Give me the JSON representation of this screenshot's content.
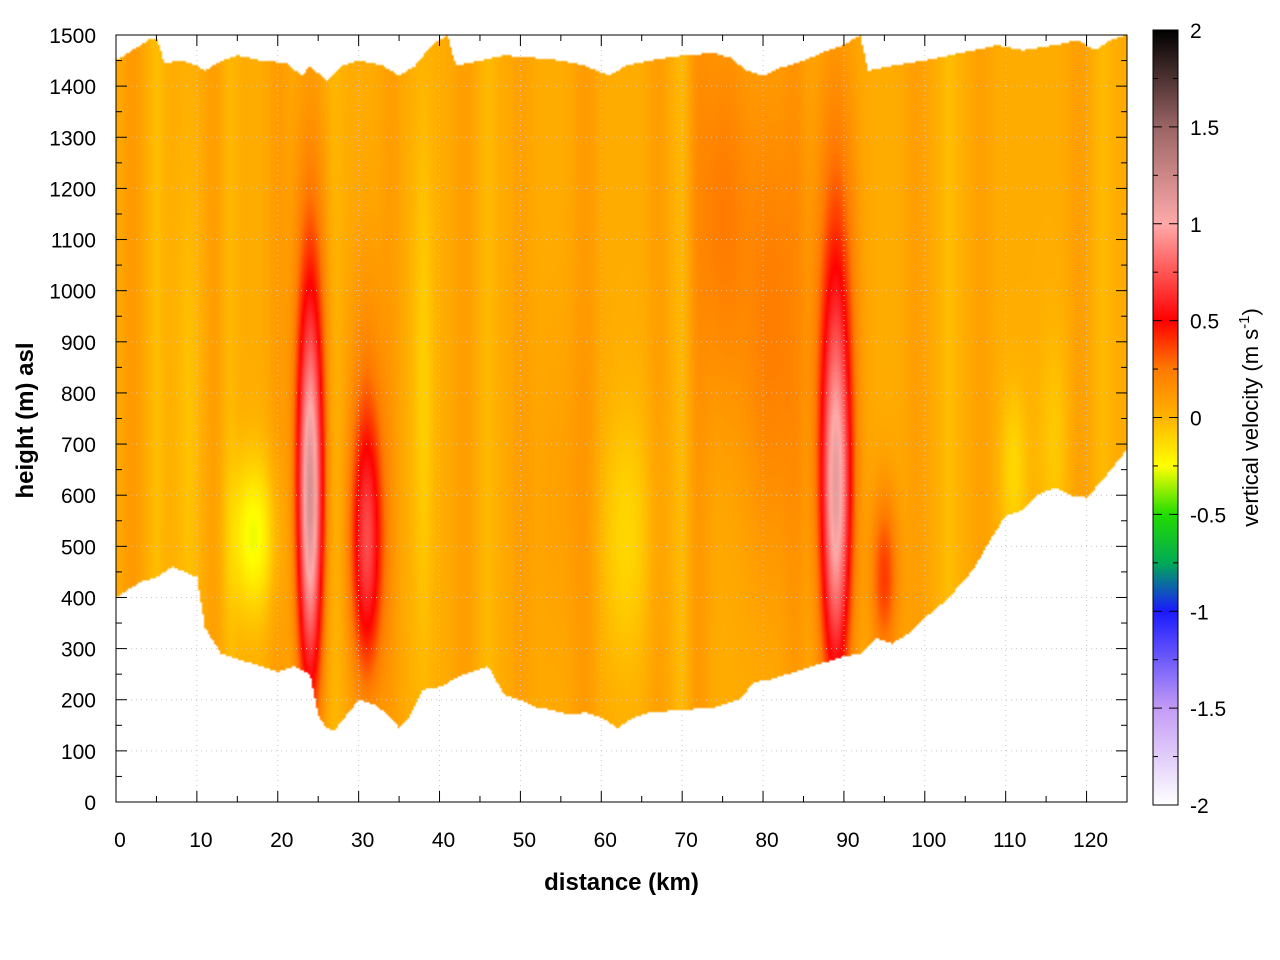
{
  "chart_data": {
    "type": "heatmap",
    "title": "",
    "xlabel": "distance (km)",
    "ylabel": "height (m) asl",
    "xlim": [
      0,
      125
    ],
    "ylim": [
      0,
      1500
    ],
    "x_ticks": [
      "0",
      "10",
      "20",
      "30",
      "40",
      "50",
      "60",
      "70",
      "80",
      "90",
      "100",
      "110",
      "120"
    ],
    "y_ticks": [
      "0",
      "100",
      "200",
      "300",
      "400",
      "500",
      "600",
      "700",
      "800",
      "900",
      "1000",
      "1100",
      "1200",
      "1300",
      "1400",
      "1500"
    ],
    "grid": true,
    "colorbar": {
      "label_prefix": "vertical velocity (m s",
      "label_exponent": "-1",
      "label_suffix": ")",
      "range": [
        -2,
        2
      ],
      "ticks": [
        "2",
        "1.5",
        "1",
        "0.5",
        "0",
        "-0.5",
        "-1",
        "-1.5",
        "-2"
      ],
      "colors": [
        {
          "v": -2.0,
          "c": "#ffffff"
        },
        {
          "v": -1.5,
          "c": "#c39bf5"
        },
        {
          "v": -1.0,
          "c": "#1a1aff"
        },
        {
          "v": -0.75,
          "c": "#00aa55"
        },
        {
          "v": -0.5,
          "c": "#22dd00"
        },
        {
          "v": -0.25,
          "c": "#ffff00"
        },
        {
          "v": 0.0,
          "c": "#ffb300"
        },
        {
          "v": 0.25,
          "c": "#ff7a00"
        },
        {
          "v": 0.5,
          "c": "#ff0000"
        },
        {
          "v": 1.0,
          "c": "#ffaaaa"
        },
        {
          "v": 1.5,
          "c": "#9a6464"
        },
        {
          "v": 2.0,
          "c": "#000000"
        }
      ]
    },
    "terrain_bottom": [
      [
        0,
        400
      ],
      [
        3,
        430
      ],
      [
        5,
        440
      ],
      [
        7,
        460
      ],
      [
        10,
        440
      ],
      [
        11,
        340
      ],
      [
        13,
        290
      ],
      [
        15,
        280
      ],
      [
        18,
        265
      ],
      [
        20,
        255
      ],
      [
        22,
        265
      ],
      [
        24,
        250
      ],
      [
        25,
        170
      ],
      [
        26,
        145
      ],
      [
        27,
        140
      ],
      [
        28,
        160
      ],
      [
        30,
        200
      ],
      [
        32,
        190
      ],
      [
        34,
        165
      ],
      [
        35,
        145
      ],
      [
        36,
        160
      ],
      [
        38,
        220
      ],
      [
        40,
        225
      ],
      [
        43,
        250
      ],
      [
        46,
        265
      ],
      [
        48,
        210
      ],
      [
        50,
        200
      ],
      [
        52,
        185
      ],
      [
        54,
        180
      ],
      [
        56,
        170
      ],
      [
        58,
        175
      ],
      [
        60,
        165
      ],
      [
        62,
        145
      ],
      [
        64,
        165
      ],
      [
        66,
        175
      ],
      [
        70,
        180
      ],
      [
        74,
        185
      ],
      [
        77,
        200
      ],
      [
        79,
        235
      ],
      [
        81,
        240
      ],
      [
        84,
        255
      ],
      [
        87,
        270
      ],
      [
        90,
        285
      ],
      [
        92,
        290
      ],
      [
        94,
        320
      ],
      [
        96,
        310
      ],
      [
        98,
        330
      ],
      [
        100,
        360
      ],
      [
        103,
        400
      ],
      [
        106,
        455
      ],
      [
        108,
        510
      ],
      [
        110,
        560
      ],
      [
        112,
        570
      ],
      [
        114,
        600
      ],
      [
        116,
        615
      ],
      [
        118,
        600
      ],
      [
        120,
        595
      ],
      [
        122,
        630
      ],
      [
        125,
        690
      ]
    ],
    "terrain_top": [
      [
        0,
        1450
      ],
      [
        2,
        1470
      ],
      [
        4,
        1490
      ],
      [
        5,
        1495
      ],
      [
        6,
        1445
      ],
      [
        8,
        1450
      ],
      [
        10,
        1440
      ],
      [
        11,
        1430
      ],
      [
        13,
        1450
      ],
      [
        15,
        1460
      ],
      [
        18,
        1450
      ],
      [
        21,
        1445
      ],
      [
        23,
        1420
      ],
      [
        24,
        1440
      ],
      [
        26,
        1410
      ],
      [
        28,
        1440
      ],
      [
        30,
        1450
      ],
      [
        33,
        1440
      ],
      [
        35,
        1420
      ],
      [
        37,
        1440
      ],
      [
        39,
        1480
      ],
      [
        41,
        1500
      ],
      [
        42,
        1440
      ],
      [
        45,
        1450
      ],
      [
        48,
        1460
      ],
      [
        52,
        1455
      ],
      [
        55,
        1450
      ],
      [
        58,
        1440
      ],
      [
        61,
        1420
      ],
      [
        63,
        1440
      ],
      [
        66,
        1450
      ],
      [
        70,
        1460
      ],
      [
        74,
        1465
      ],
      [
        76,
        1455
      ],
      [
        78,
        1430
      ],
      [
        80,
        1420
      ],
      [
        82,
        1435
      ],
      [
        85,
        1450
      ],
      [
        88,
        1470
      ],
      [
        90,
        1480
      ],
      [
        92,
        1500
      ],
      [
        93,
        1430
      ],
      [
        96,
        1440
      ],
      [
        100,
        1450
      ],
      [
        103,
        1460
      ],
      [
        106,
        1470
      ],
      [
        109,
        1480
      ],
      [
        112,
        1470
      ],
      [
        116,
        1480
      ],
      [
        119,
        1490
      ],
      [
        121,
        1470
      ],
      [
        123,
        1490
      ],
      [
        125,
        1500
      ]
    ],
    "features": [
      {
        "x": 24,
        "y": 570,
        "sx": 1.1,
        "sy": 260,
        "v": 1.0
      },
      {
        "x": 24,
        "y": 900,
        "sx": 1.5,
        "sy": 330,
        "v": 0.25
      },
      {
        "x": 31,
        "y": 490,
        "sx": 1.4,
        "sy": 180,
        "v": 0.6
      },
      {
        "x": 31,
        "y": 750,
        "sx": 1.6,
        "sy": 250,
        "v": 0.15
      },
      {
        "x": 89,
        "y": 580,
        "sx": 1.3,
        "sy": 260,
        "v": 0.9
      },
      {
        "x": 89,
        "y": 950,
        "sx": 1.8,
        "sy": 350,
        "v": 0.3
      },
      {
        "x": 95,
        "y": 440,
        "sx": 1.2,
        "sy": 120,
        "v": 0.35
      },
      {
        "x": 75,
        "y": 1150,
        "sx": 2.2,
        "sy": 280,
        "v": 0.2
      },
      {
        "x": 81,
        "y": 950,
        "sx": 2.5,
        "sy": 350,
        "v": 0.2
      },
      {
        "x": 17,
        "y": 520,
        "sx": 2.0,
        "sy": 110,
        "v": -0.3
      },
      {
        "x": 63,
        "y": 520,
        "sx": 2.4,
        "sy": 180,
        "v": -0.15
      },
      {
        "x": 111,
        "y": 650,
        "sx": 1.2,
        "sy": 120,
        "v": -0.15
      },
      {
        "x": 116,
        "y": 700,
        "sx": 1.5,
        "sy": 160,
        "v": -0.1
      },
      {
        "x": 38,
        "y": 800,
        "sx": 1.0,
        "sy": 400,
        "v": -0.12
      },
      {
        "x": 9,
        "y": 700,
        "sx": 1.2,
        "sy": 400,
        "v": -0.08
      },
      {
        "x": 55,
        "y": 600,
        "sx": 3.0,
        "sy": 250,
        "v": 0.05
      }
    ],
    "stripes": [
      {
        "x": 2,
        "w": 1.0,
        "v": 0.08
      },
      {
        "x": 5,
        "w": 0.8,
        "v": -0.06
      },
      {
        "x": 12,
        "w": 1.0,
        "v": 0.06
      },
      {
        "x": 14,
        "w": 0.7,
        "v": -0.05
      },
      {
        "x": 20,
        "w": 0.9,
        "v": 0.07
      },
      {
        "x": 27,
        "w": 0.8,
        "v": -0.05
      },
      {
        "x": 34,
        "w": 1.0,
        "v": 0.06
      },
      {
        "x": 43,
        "w": 1.1,
        "v": 0.06
      },
      {
        "x": 46,
        "w": 0.8,
        "v": -0.05
      },
      {
        "x": 50,
        "w": 1.0,
        "v": 0.05
      },
      {
        "x": 58,
        "w": 1.2,
        "v": 0.07
      },
      {
        "x": 67,
        "w": 1.0,
        "v": 0.06
      },
      {
        "x": 70,
        "w": 0.8,
        "v": -0.06
      },
      {
        "x": 72,
        "w": 1.0,
        "v": 0.08
      },
      {
        "x": 84,
        "w": 1.0,
        "v": 0.07
      },
      {
        "x": 99,
        "w": 1.2,
        "v": 0.06
      },
      {
        "x": 103,
        "w": 0.9,
        "v": -0.06
      },
      {
        "x": 107,
        "w": 1.0,
        "v": 0.05
      },
      {
        "x": 119,
        "w": 1.0,
        "v": 0.06
      },
      {
        "x": 122,
        "w": 0.8,
        "v": -0.05
      }
    ],
    "background_value": 0.03
  }
}
